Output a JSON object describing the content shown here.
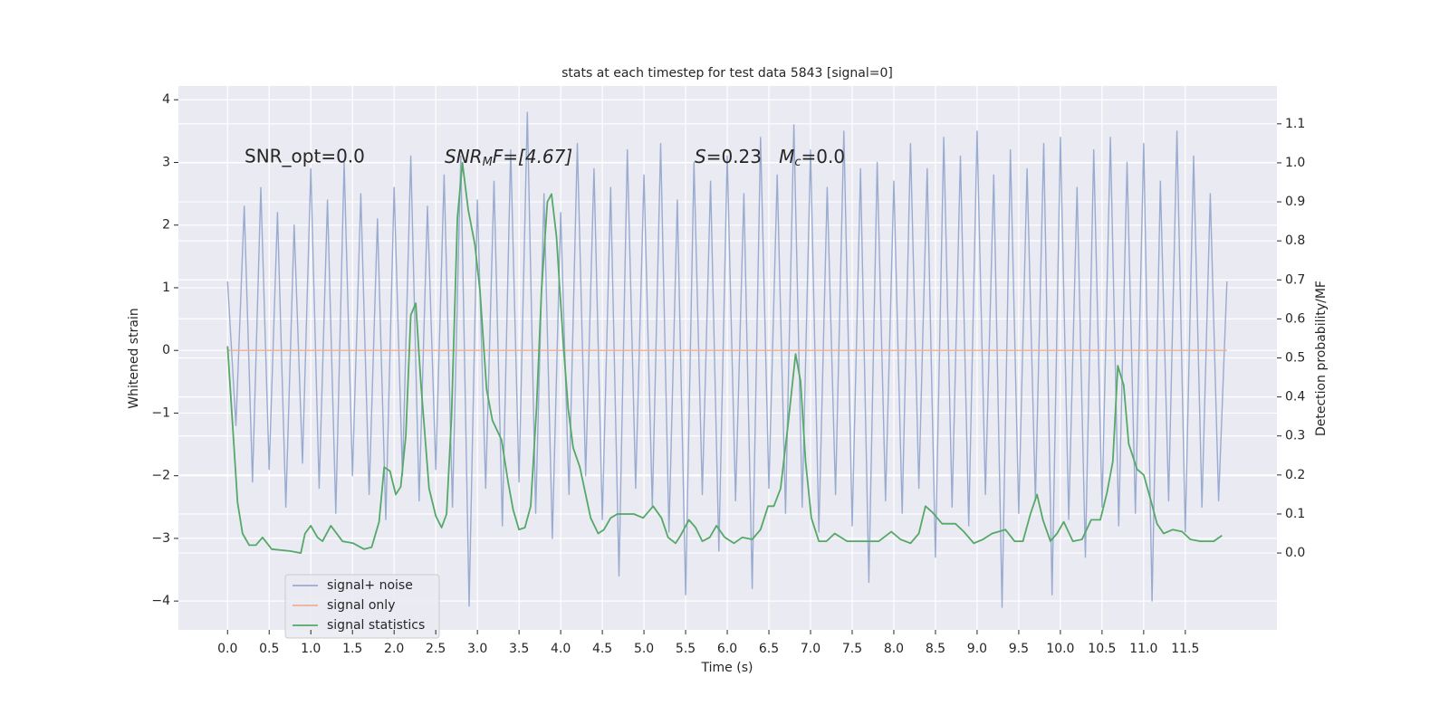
{
  "chart_data": {
    "type": "line",
    "title": "stats at each timestep for test data 5843 [signal=0]",
    "x_label": "Time (s)",
    "y_label": "Whitened strain",
    "y2_label": "Detection probability/MF",
    "annotations": [
      [
        "SNR_opt=0.0"
      ],
      [
        "SNR",
        "M",
        "F=[4.67]"
      ],
      [
        "S",
        "=0.23   ",
        "M",
        "c",
        "=0.0"
      ]
    ],
    "grid": true,
    "legend": "lower left",
    "xlim": [
      -0.59,
      12.6
    ],
    "ylim": [
      -4.46,
      4.22
    ],
    "y2lim": [
      -0.197,
      1.197
    ],
    "xticks": [
      {
        "value": 0,
        "label": "0.0"
      },
      0.5,
      {
        "value": 1,
        "label": "1.0"
      },
      1.5,
      {
        "value": 2,
        "label": "2.0"
      },
      2.5,
      {
        "value": 3,
        "label": "3.0"
      },
      3.5,
      {
        "value": 4,
        "label": "4.0"
      },
      4.5,
      {
        "value": 5,
        "label": "5.0"
      },
      5.5,
      {
        "value": 6,
        "label": "6.0"
      },
      6.5,
      {
        "value": 7,
        "label": "7.0"
      },
      7.5,
      {
        "value": 8,
        "label": "8.0"
      },
      8.5,
      {
        "value": 9,
        "label": "9.0"
      },
      9.5,
      {
        "value": 10,
        "label": "10.0"
      },
      10.5,
      {
        "value": 11,
        "label": "11.0"
      },
      11.5
    ],
    "yticks": [
      {
        "value": -4,
        "label": "−4"
      },
      {
        "value": -3,
        "label": "−3"
      },
      {
        "value": -2,
        "label": "−2"
      },
      {
        "value": -1,
        "label": "−1"
      },
      0,
      1,
      2,
      3,
      4
    ],
    "y2ticks": [
      {
        "value": 0,
        "label": "0.0"
      },
      0.1,
      0.2,
      0.3,
      0.4,
      0.5,
      0.6,
      0.7,
      0.8,
      0.9,
      {
        "value": 1,
        "label": "1.0"
      },
      1.1
    ],
    "series": [
      {
        "name": "signal+ noise",
        "color": "#9aabd0",
        "x": [
          0,
          0.1,
          0.2,
          0.3,
          0.4,
          0.5,
          0.6,
          0.7,
          0.8,
          0.9,
          1,
          1.1,
          1.2,
          1.3,
          1.4,
          1.5,
          1.6,
          1.7,
          1.8,
          1.9,
          2,
          2.1,
          2.2,
          2.3,
          2.4,
          2.5,
          2.6,
          2.7,
          2.8,
          2.9,
          3,
          3.1,
          3.2,
          3.3,
          3.4,
          3.5,
          3.6,
          3.7,
          3.8,
          3.9,
          4,
          4.1,
          4.2,
          4.3,
          4.4,
          4.5,
          4.6,
          4.7,
          4.8,
          4.9,
          5,
          5.1,
          5.2,
          5.3,
          5.4,
          5.5,
          5.6,
          5.7,
          5.8,
          5.9,
          6,
          6.1,
          6.2,
          6.3,
          6.4,
          6.5,
          6.6,
          6.7,
          6.8,
          6.9,
          7,
          7.1,
          7.2,
          7.3,
          7.4,
          7.5,
          7.6,
          7.7,
          7.8,
          7.9,
          8,
          8.1,
          8.2,
          8.3,
          8.4,
          8.5,
          8.6,
          8.7,
          8.8,
          8.9,
          9,
          9.1,
          9.2,
          9.3,
          9.4,
          9.5,
          9.6,
          9.7,
          9.8,
          9.9,
          10,
          10.1,
          10.2,
          10.3,
          10.4,
          10.5,
          10.6,
          10.7,
          10.8,
          10.9,
          11,
          11.1,
          11.2,
          11.3,
          11.4,
          11.5,
          11.6,
          11.7,
          11.8,
          11.9,
          12
        ],
        "values": [
          1.1,
          -1.2,
          2.3,
          -2.1,
          2.6,
          -1.9,
          2.2,
          -2.5,
          2.0,
          -1.8,
          2.9,
          -2.2,
          2.4,
          -2.6,
          3.0,
          -2.0,
          2.5,
          -2.3,
          2.1,
          -2.7,
          2.6,
          -2.0,
          3.1,
          -2.4,
          2.3,
          -1.9,
          2.8,
          -2.5,
          3.1,
          -4.08,
          2.4,
          -2.2,
          2.7,
          -2.8,
          3.2,
          -2.1,
          3.8,
          -2.6,
          2.5,
          -3.0,
          2.2,
          -2.3,
          3.3,
          -2.0,
          2.9,
          -2.7,
          2.6,
          -3.6,
          3.2,
          -2.2,
          2.8,
          -2.5,
          3.3,
          -2.9,
          2.4,
          -3.9,
          3.0,
          -2.3,
          2.7,
          -3.2,
          3.1,
          -2.4,
          2.5,
          -3.8,
          3.4,
          -2.2,
          2.8,
          -2.6,
          3.6,
          -2.5,
          3.2,
          -2.9,
          2.6,
          -2.3,
          3.5,
          -2.8,
          2.9,
          -3.7,
          3.0,
          -2.4,
          2.7,
          -2.6,
          3.3,
          -2.2,
          2.9,
          -3.3,
          3.4,
          -2.5,
          3.1,
          -2.8,
          3.5,
          -2.3,
          2.8,
          -4.1,
          3.2,
          -2.6,
          2.9,
          -2.4,
          3.3,
          -3.9,
          3.4,
          -2.7,
          2.6,
          -3.3,
          3.2,
          -2.5,
          3.4,
          -2.8,
          3.0,
          -2.6,
          3.3,
          -4.0,
          2.7,
          -2.4,
          3.5,
          -2.9,
          3.1,
          -2.5,
          2.5,
          -2.4,
          1.1
        ]
      },
      {
        "name": "signal only",
        "color": "#eeb195",
        "x": [
          0,
          12
        ],
        "values": [
          0,
          0
        ]
      },
      {
        "name": "signal statistics",
        "color": "#55a868",
        "axis": "y2",
        "x": [
          0,
          0.12,
          0.18,
          0.26,
          0.34,
          0.42,
          0.53,
          0.75,
          0.88,
          0.93,
          1.0,
          1.08,
          1.14,
          1.24,
          1.38,
          1.51,
          1.64,
          1.73,
          1.82,
          1.88,
          1.95,
          2.02,
          2.08,
          2.14,
          2.2,
          2.26,
          2.32,
          2.42,
          2.5,
          2.57,
          2.63,
          2.69,
          2.76,
          2.82,
          2.89,
          2.97,
          3.03,
          3.11,
          3.18,
          3.29,
          3.37,
          3.43,
          3.5,
          3.57,
          3.64,
          3.71,
          3.77,
          3.84,
          3.89,
          3.95,
          4.03,
          4.09,
          4.15,
          4.23,
          4.3,
          4.36,
          4.45,
          4.52,
          4.6,
          4.68,
          4.88,
          4.99,
          5.11,
          5.21,
          5.29,
          5.38,
          5.44,
          5.54,
          5.62,
          5.7,
          5.79,
          5.87,
          5.97,
          6.08,
          6.18,
          6.3,
          6.4,
          6.49,
          6.56,
          6.64,
          6.73,
          6.82,
          6.88,
          6.94,
          7.01,
          7.1,
          7.19,
          7.29,
          7.44,
          7.6,
          7.82,
          7.97,
          8.08,
          8.2,
          8.3,
          8.38,
          8.46,
          8.58,
          8.74,
          8.84,
          8.96,
          9.07,
          9.18,
          9.34,
          9.45,
          9.55,
          9.64,
          9.72,
          9.79,
          9.88,
          9.96,
          10.04,
          10.15,
          10.26,
          10.37,
          10.48,
          10.56,
          10.63,
          10.69,
          10.76,
          10.82,
          10.92,
          11.0,
          11.08,
          11.16,
          11.24,
          11.35,
          11.46,
          11.56,
          11.68,
          11.84,
          11.94
        ],
        "values": [
          0.53,
          0.13,
          0.05,
          0.02,
          0.02,
          0.04,
          0.01,
          0.005,
          0.0,
          0.05,
          0.07,
          0.04,
          0.03,
          0.07,
          0.03,
          0.025,
          0.01,
          0.015,
          0.08,
          0.22,
          0.21,
          0.15,
          0.17,
          0.3,
          0.61,
          0.64,
          0.44,
          0.165,
          0.095,
          0.065,
          0.1,
          0.35,
          0.86,
          1.0,
          0.88,
          0.79,
          0.675,
          0.42,
          0.34,
          0.29,
          0.18,
          0.11,
          0.06,
          0.065,
          0.12,
          0.37,
          0.675,
          0.9,
          0.92,
          0.81,
          0.54,
          0.37,
          0.27,
          0.22,
          0.15,
          0.09,
          0.05,
          0.06,
          0.09,
          0.1,
          0.1,
          0.09,
          0.12,
          0.09,
          0.04,
          0.025,
          0.045,
          0.085,
          0.065,
          0.03,
          0.04,
          0.07,
          0.04,
          0.025,
          0.04,
          0.035,
          0.06,
          0.12,
          0.12,
          0.165,
          0.33,
          0.51,
          0.44,
          0.235,
          0.09,
          0.03,
          0.03,
          0.05,
          0.03,
          0.03,
          0.03,
          0.055,
          0.035,
          0.025,
          0.05,
          0.12,
          0.105,
          0.075,
          0.075,
          0.055,
          0.025,
          0.035,
          0.05,
          0.06,
          0.03,
          0.03,
          0.1,
          0.15,
          0.085,
          0.03,
          0.05,
          0.08,
          0.03,
          0.035,
          0.085,
          0.085,
          0.155,
          0.235,
          0.48,
          0.43,
          0.28,
          0.215,
          0.2,
          0.14,
          0.075,
          0.05,
          0.06,
          0.055,
          0.035,
          0.03,
          0.03,
          0.045
        ]
      }
    ]
  }
}
